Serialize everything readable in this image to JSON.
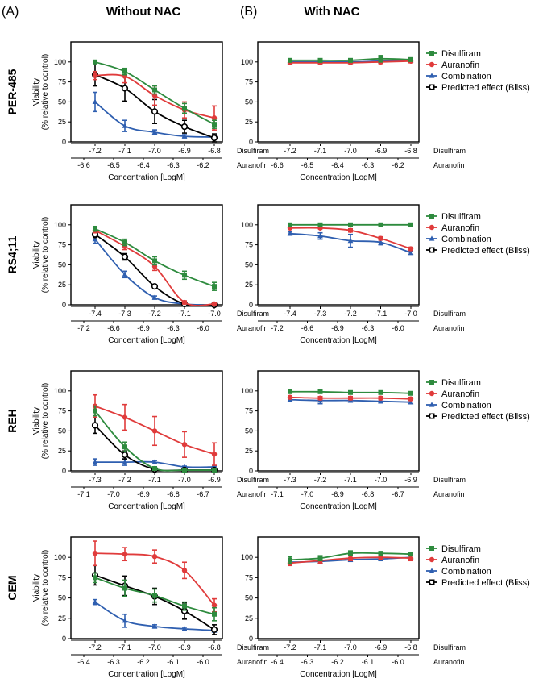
{
  "panels": {
    "a": {
      "label": "(A)",
      "title": "Without NAC"
    },
    "b": {
      "label": "(B)",
      "title": "With NAC"
    }
  },
  "y_axis_label": {
    "line1": "Viability",
    "line2": "(% relative to control)"
  },
  "x_axis_label": "Concentration [LogM]",
  "axis_names": {
    "primary": "Disulfiram",
    "secondary": "Auranofin"
  },
  "legend": [
    {
      "name": "Disulfiram",
      "color": "#2e8b3e",
      "marker": "square"
    },
    {
      "name": "Auranofin",
      "color": "#e03b3b",
      "marker": "circle"
    },
    {
      "name": "Combination",
      "color": "#2f5fb0",
      "marker": "triangle"
    },
    {
      "name": "Predicted effect (Bliss)",
      "color": "#000000",
      "marker": "square-open-circle"
    }
  ],
  "colors": {
    "disulfiram": "#2e8b3e",
    "auranofin": "#e03b3b",
    "combination": "#2f5fb0",
    "bliss": "#000000"
  },
  "chart_data": [
    {
      "type": "line",
      "row": "PER-485",
      "condition": "Without NAC",
      "ylim": [
        0,
        125
      ],
      "yticks": [
        0,
        25,
        50,
        75,
        100
      ],
      "x_primary_ticks": [
        "-7.2",
        "-7.1",
        "-7.0",
        "-6.9",
        "-6.8"
      ],
      "x_secondary_ticks": [
        "-6.6",
        "-6.5",
        "-6.4",
        "-6.3",
        "-6.2"
      ],
      "series": [
        {
          "name": "Disulfiram",
          "values": [
            100,
            88,
            65,
            42,
            22
          ],
          "errors": [
            2,
            4,
            5,
            6,
            5
          ]
        },
        {
          "name": "Auranofin",
          "values": [
            83,
            82,
            58,
            40,
            30
          ],
          "errors": [
            5,
            8,
            12,
            10,
            15
          ]
        },
        {
          "name": "Combination",
          "values": [
            50,
            20,
            12,
            7,
            6
          ],
          "errors": [
            12,
            7,
            3,
            2,
            2
          ]
        },
        {
          "name": "Predicted effect (Bliss)",
          "values": [
            84,
            67,
            38,
            19,
            5
          ],
          "errors": [
            14,
            16,
            15,
            8,
            5
          ]
        }
      ]
    },
    {
      "type": "line",
      "row": "PER-485",
      "condition": "With NAC",
      "ylim": [
        0,
        125
      ],
      "yticks": [
        0,
        25,
        50,
        75,
        100
      ],
      "x_primary_ticks": [
        "-7.2",
        "-7.1",
        "-7.0",
        "-6.9",
        "-6.8"
      ],
      "x_secondary_ticks": [
        "-6.6",
        "-6.5",
        "-6.4",
        "-6.3",
        "-6.2"
      ],
      "series": [
        {
          "name": "Disulfiram",
          "values": [
            102,
            102,
            102,
            104,
            103
          ],
          "errors": [
            1,
            2,
            2,
            4,
            2
          ]
        },
        {
          "name": "Auranofin",
          "values": [
            99,
            99,
            99,
            100,
            101
          ],
          "errors": [
            1,
            1,
            1,
            2,
            2
          ]
        },
        {
          "name": "Combination",
          "values": [
            100,
            100,
            100,
            101,
            102
          ],
          "errors": [
            1,
            1,
            1,
            1,
            1
          ]
        }
      ]
    },
    {
      "type": "line",
      "row": "RS4;11",
      "condition": "Without NAC",
      "ylim": [
        0,
        125
      ],
      "yticks": [
        0,
        25,
        50,
        75,
        100
      ],
      "x_primary_ticks": [
        "-7.4",
        "-7.3",
        "-7.2",
        "-7.1",
        "-7.0"
      ],
      "x_secondary_ticks": [
        "-7.2",
        "-6.6",
        "-6.9",
        "-6.3",
        "-6.0"
      ],
      "series": [
        {
          "name": "Disulfiram",
          "values": [
            95,
            78,
            55,
            37,
            23
          ],
          "errors": [
            3,
            4,
            5,
            5,
            5
          ]
        },
        {
          "name": "Auranofin",
          "values": [
            93,
            73,
            48,
            3,
            1
          ],
          "errors": [
            3,
            4,
            5,
            2,
            1
          ]
        },
        {
          "name": "Combination",
          "values": [
            82,
            38,
            9,
            1,
            0
          ],
          "errors": [
            5,
            4,
            2,
            1,
            1
          ]
        },
        {
          "name": "Predicted effect (Bliss)",
          "values": [
            88,
            60,
            23,
            1,
            0
          ],
          "errors": [
            4,
            4,
            2,
            1,
            1
          ]
        }
      ]
    },
    {
      "type": "line",
      "row": "RS4;11",
      "condition": "With NAC",
      "ylim": [
        0,
        125
      ],
      "yticks": [
        0,
        25,
        50,
        75,
        100
      ],
      "x_primary_ticks": [
        "-7.4",
        "-7.3",
        "-7.2",
        "-7.1",
        "-7.0"
      ],
      "x_secondary_ticks": [
        "-7.2",
        "-6.6",
        "-6.9",
        "-6.3",
        "-6.0"
      ],
      "series": [
        {
          "name": "Disulfiram",
          "values": [
            100,
            100,
            100,
            100,
            100
          ],
          "errors": [
            1,
            1,
            1,
            1,
            1
          ]
        },
        {
          "name": "Auranofin",
          "values": [
            96,
            96,
            93,
            83,
            70
          ],
          "errors": [
            1,
            1,
            2,
            2,
            2
          ]
        },
        {
          "name": "Combination",
          "values": [
            89,
            86,
            80,
            78,
            65
          ],
          "errors": [
            2,
            4,
            8,
            3,
            2
          ]
        }
      ]
    },
    {
      "type": "line",
      "row": "REH",
      "condition": "Without NAC",
      "ylim": [
        0,
        125
      ],
      "yticks": [
        0,
        25,
        50,
        75,
        100
      ],
      "x_primary_ticks": [
        "-7.3",
        "-7.2",
        "-7.1",
        "-7.0",
        "-6.9"
      ],
      "x_secondary_ticks": [
        "-7.1",
        "-7.0",
        "-6.9",
        "-6.8",
        "-6.7"
      ],
      "series": [
        {
          "name": "Disulfiram",
          "values": [
            75,
            30,
            3,
            1,
            1
          ],
          "errors": [
            6,
            6,
            2,
            1,
            1
          ]
        },
        {
          "name": "Auranofin",
          "values": [
            81,
            67,
            50,
            33,
            21
          ],
          "errors": [
            14,
            16,
            18,
            16,
            14
          ]
        },
        {
          "name": "Combination",
          "values": [
            11,
            11,
            11,
            5,
            5
          ],
          "errors": [
            4,
            4,
            2,
            1,
            1
          ]
        },
        {
          "name": "Predicted effect (Bliss)",
          "values": [
            57,
            20,
            2,
            1,
            1
          ],
          "errors": [
            10,
            5,
            2,
            1,
            1
          ]
        }
      ]
    },
    {
      "type": "line",
      "row": "REH",
      "condition": "With NAC",
      "ylim": [
        0,
        125
      ],
      "yticks": [
        0,
        25,
        50,
        75,
        100
      ],
      "x_primary_ticks": [
        "-7.3",
        "-7.2",
        "-7.1",
        "-7.0",
        "-6.9"
      ],
      "x_secondary_ticks": [
        "-7.1",
        "-7.0",
        "-6.9",
        "-6.8",
        "-6.7"
      ],
      "series": [
        {
          "name": "Disulfiram",
          "values": [
            99,
            99,
            98,
            98,
            97
          ],
          "errors": [
            1,
            1,
            1,
            1,
            1
          ]
        },
        {
          "name": "Auranofin",
          "values": [
            92,
            91,
            91,
            91,
            90
          ],
          "errors": [
            2,
            2,
            2,
            2,
            2
          ]
        },
        {
          "name": "Combination",
          "values": [
            89,
            88,
            88,
            87,
            86
          ],
          "errors": [
            2,
            4,
            2,
            2,
            2
          ]
        }
      ]
    },
    {
      "type": "line",
      "row": "CEM",
      "condition": "Without NAC",
      "ylim": [
        0,
        125
      ],
      "yticks": [
        0,
        25,
        50,
        75,
        100
      ],
      "x_primary_ticks": [
        "-7.2",
        "-7.1",
        "-7.0",
        "-6.9",
        "-6.8"
      ],
      "x_secondary_ticks": [
        "-6.4",
        "-6.3",
        "-6.2",
        "-6.1",
        "-6.0"
      ],
      "series": [
        {
          "name": "Disulfiram",
          "values": [
            75,
            62,
            53,
            40,
            30
          ],
          "errors": [
            6,
            10,
            8,
            5,
            8
          ]
        },
        {
          "name": "Auranofin",
          "values": [
            105,
            104,
            101,
            84,
            41
          ],
          "errors": [
            15,
            8,
            8,
            10,
            8
          ]
        },
        {
          "name": "Combination",
          "values": [
            45,
            22,
            15,
            12,
            10
          ],
          "errors": [
            3,
            8,
            2,
            2,
            2
          ]
        },
        {
          "name": "Predicted effect (Bliss)",
          "values": [
            78,
            65,
            52,
            34,
            11
          ],
          "errors": [
            12,
            12,
            10,
            10,
            6
          ]
        }
      ]
    },
    {
      "type": "line",
      "row": "CEM",
      "condition": "With NAC",
      "ylim": [
        0,
        125
      ],
      "yticks": [
        0,
        25,
        50,
        75,
        100
      ],
      "x_primary_ticks": [
        "-7.2",
        "-7.1",
        "-7.0",
        "-6.9",
        "-6.8"
      ],
      "x_secondary_ticks": [
        "-6.4",
        "-6.3",
        "-6.2",
        "-6.1",
        "-6.0"
      ],
      "series": [
        {
          "name": "Disulfiram",
          "values": [
            97,
            99,
            105,
            105,
            104
          ],
          "errors": [
            4,
            3,
            3,
            2,
            2
          ]
        },
        {
          "name": "Auranofin",
          "values": [
            93,
            96,
            99,
            100,
            99
          ],
          "errors": [
            3,
            3,
            3,
            2,
            3
          ]
        },
        {
          "name": "Combination",
          "values": [
            94,
            95,
            97,
            98,
            100
          ],
          "errors": [
            2,
            2,
            2,
            2,
            2
          ]
        }
      ]
    }
  ]
}
